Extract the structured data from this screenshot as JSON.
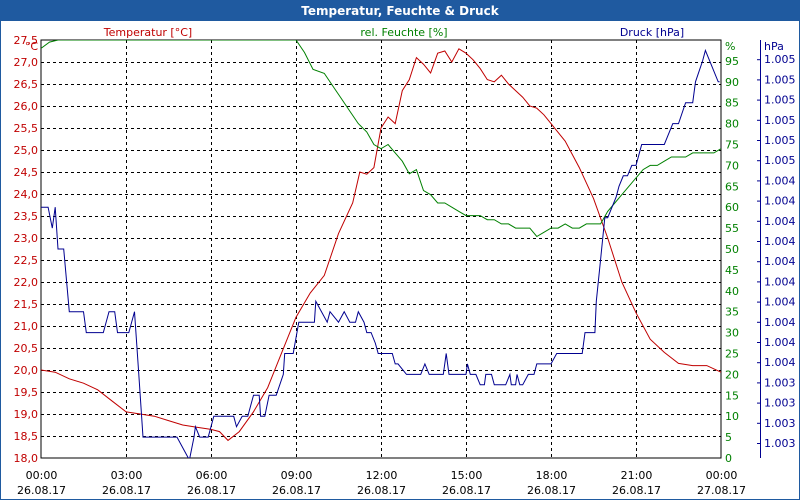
{
  "window": {
    "title": "Temperatur, Feuchte & Druck"
  },
  "chart_data": {
    "type": "line",
    "title": "Temperatur, Feuchte & Druck",
    "x_ticks": [
      {
        "time": "00:00",
        "date": "26.08.17"
      },
      {
        "time": "03:00",
        "date": "26.08.17"
      },
      {
        "time": "06:00",
        "date": "26.08.17"
      },
      {
        "time": "09:00",
        "date": "26.08.17"
      },
      {
        "time": "12:00",
        "date": "26.08.17"
      },
      {
        "time": "15:00",
        "date": "26.08.17"
      },
      {
        "time": "18:00",
        "date": "26.08.17"
      },
      {
        "time": "21:00",
        "date": "26.08.17"
      },
      {
        "time": "00:00",
        "date": "27.08.17"
      }
    ],
    "xlim": [
      0,
      24
    ],
    "axes": {
      "temperature": {
        "label": "Temperatur [°C]",
        "unit": "°C",
        "color": "#c00000",
        "ylim": [
          18.0,
          27.5
        ],
        "ticks": [
          "18,0",
          "18,5",
          "19,0",
          "19,5",
          "20,0",
          "20,5",
          "21,0",
          "21,5",
          "22,0",
          "22,5",
          "23,0",
          "23,5",
          "24,0",
          "24,5",
          "25,0",
          "25,5",
          "26,0",
          "26,5",
          "27,0",
          "27,5"
        ]
      },
      "humidity": {
        "label": "rel. Feuchte [%]",
        "unit": "%",
        "color": "#008000",
        "ylim": [
          0,
          100
        ],
        "ticks": [
          "0",
          "5",
          "10",
          "15",
          "20",
          "25",
          "30",
          "35",
          "40",
          "45",
          "50",
          "55",
          "60",
          "65",
          "70",
          "75",
          "80",
          "85",
          "90",
          "95"
        ]
      },
      "pressure": {
        "label": "Druck [hPa]",
        "unit": "hPa",
        "color": "#000090",
        "ylim": [
          1003.0,
          1005.0
        ],
        "ticks": [
          "1.003",
          "1.003",
          "1.003",
          "1.003",
          "1.004",
          "1.004",
          "1.004",
          "1.004",
          "1.004",
          "1.004",
          "1.004",
          "1.004",
          "1.004",
          "1.004",
          "1.005",
          "1.005",
          "1.005",
          "1.005",
          "1.005",
          "1.005"
        ]
      }
    },
    "series": [
      {
        "name": "Temperatur",
        "axis": "temperature",
        "color": "#c00000",
        "x": [
          0,
          0.5,
          1,
          1.5,
          2,
          2.5,
          3,
          3.5,
          4,
          4.5,
          5,
          5.5,
          6,
          6.3,
          6.6,
          7,
          7.5,
          8,
          8.5,
          9,
          9.5,
          10,
          10.5,
          11,
          11.25,
          11.5,
          11.75,
          12,
          12.25,
          12.5,
          12.75,
          13,
          13.25,
          13.5,
          13.75,
          14,
          14.25,
          14.5,
          14.75,
          15,
          15.25,
          15.5,
          15.75,
          16,
          16.25,
          16.5,
          16.75,
          17,
          17.25,
          17.5,
          17.75,
          18,
          18.5,
          19,
          19.5,
          20,
          20.5,
          21,
          21.5,
          22,
          22.5,
          23,
          23.5,
          24
        ],
        "values": [
          20.0,
          19.95,
          19.8,
          19.7,
          19.55,
          19.3,
          19.05,
          19.0,
          18.95,
          18.85,
          18.75,
          18.7,
          18.65,
          18.6,
          18.4,
          18.6,
          19.05,
          19.6,
          20.4,
          21.2,
          21.75,
          22.15,
          23.1,
          23.8,
          24.5,
          24.45,
          24.6,
          25.5,
          25.75,
          25.6,
          26.35,
          26.6,
          27.1,
          26.95,
          26.75,
          27.2,
          27.25,
          27.0,
          27.3,
          27.2,
          27.05,
          26.85,
          26.6,
          26.55,
          26.7,
          26.5,
          26.35,
          26.2,
          26.0,
          25.95,
          25.8,
          25.6,
          25.2,
          24.6,
          23.9,
          23.0,
          22.0,
          21.3,
          20.7,
          20.4,
          20.15,
          20.1,
          20.1,
          19.95
        ]
      },
      {
        "name": "rel. Feuchte",
        "axis": "humidity",
        "color": "#008000",
        "x": [
          0,
          0.3,
          0.6,
          0.8,
          9.0,
          9.3,
          9.6,
          10.0,
          10.3,
          10.6,
          10.9,
          11.2,
          11.5,
          11.75,
          12.0,
          12.25,
          12.5,
          12.75,
          13.0,
          13.25,
          13.5,
          13.75,
          14.0,
          14.25,
          14.5,
          14.75,
          15.0,
          15.25,
          15.5,
          15.75,
          16.0,
          16.25,
          16.5,
          16.75,
          17.0,
          17.25,
          17.5,
          17.75,
          18.0,
          18.25,
          18.5,
          18.75,
          19.0,
          19.25,
          19.5,
          19.75,
          20.0,
          20.25,
          20.5,
          20.75,
          21.0,
          21.25,
          21.5,
          21.75,
          22.0,
          22.25,
          22.5,
          22.75,
          23.0,
          23.25,
          23.5,
          23.75,
          24.0
        ],
        "values": [
          98,
          99.5,
          100,
          100,
          100,
          97,
          93,
          92,
          89,
          86,
          83,
          80,
          78,
          75,
          74,
          75,
          73,
          71,
          68,
          69,
          64,
          63,
          61,
          61,
          60,
          59,
          58,
          58,
          58,
          57,
          57,
          56,
          56,
          55,
          55,
          55,
          53,
          54,
          55,
          55,
          56,
          55,
          55,
          56,
          56,
          56,
          59,
          61,
          63,
          65,
          67,
          69,
          70,
          70,
          71,
          72,
          72,
          72,
          73,
          73,
          73,
          73,
          74
        ]
      },
      {
        "name": "Druck",
        "axis": "pressure",
        "color": "#000090",
        "x": [
          0,
          0.25,
          0.4,
          0.5,
          0.6,
          0.8,
          1.0,
          1.1,
          1.3,
          1.5,
          1.6,
          2.2,
          2.4,
          2.6,
          2.7,
          2.8,
          3.1,
          3.3,
          3.45,
          3.5,
          3.6,
          3.65,
          3.9,
          4.5,
          4.8,
          5.2,
          5.25,
          5.4,
          5.45,
          5.6,
          5.7,
          5.9,
          6.1,
          6.2,
          6.3,
          6.6,
          6.8,
          6.9,
          7.1,
          7.15,
          7.3,
          7.5,
          7.7,
          7.75,
          7.9,
          8.05,
          8.3,
          8.55,
          8.6,
          8.7,
          8.9,
          9.1,
          9.4,
          9.65,
          9.7,
          9.9,
          10.1,
          10.2,
          10.5,
          10.7,
          10.9,
          11.1,
          11.2,
          11.4,
          11.5,
          11.65,
          11.8,
          11.9,
          12.0,
          12.1,
          12.3,
          12.4,
          12.5,
          12.6,
          12.9,
          12.95,
          13.1,
          13.35,
          13.4,
          13.55,
          13.7,
          13.85,
          14.0,
          14.2,
          14.3,
          14.4,
          14.6,
          14.9,
          15.0,
          15.05,
          15.15,
          15.3,
          15.35,
          15.5,
          15.65,
          15.7,
          15.9,
          16.0,
          16.3,
          16.4,
          16.55,
          16.6,
          16.75,
          16.8,
          16.9,
          17.0,
          17.2,
          17.4,
          17.5,
          17.6,
          17.8,
          18.0,
          18.2,
          18.5,
          18.8,
          19.1,
          19.2,
          19.4,
          19.55,
          19.6,
          19.75,
          19.9,
          20.0,
          20.3,
          20.4,
          20.55,
          20.7,
          20.85,
          21.0,
          21.2,
          21.5,
          21.7,
          21.8,
          22.0,
          22.3,
          22.5,
          22.75,
          23.0,
          23.1,
          23.35,
          23.45,
          23.6,
          23.9,
          23.95
        ],
        "values": [
          1004.2,
          1004.2,
          1004.1,
          1004.2,
          1004.0,
          1004.0,
          1003.7,
          1003.7,
          1003.7,
          1003.7,
          1003.6,
          1003.6,
          1003.7,
          1003.7,
          1003.6,
          1003.6,
          1003.6,
          1003.7,
          1003.4,
          1003.3,
          1003.1,
          1003.1,
          1003.1,
          1003.1,
          1003.1,
          1003.0,
          1003.0,
          1003.1,
          1003.15,
          1003.1,
          1003.1,
          1003.1,
          1003.2,
          1003.2,
          1003.2,
          1003.2,
          1003.2,
          1003.15,
          1003.2,
          1003.2,
          1003.2,
          1003.3,
          1003.3,
          1003.2,
          1003.2,
          1003.3,
          1003.3,
          1003.4,
          1003.5,
          1003.5,
          1003.5,
          1003.65,
          1003.65,
          1003.65,
          1003.75,
          1003.7,
          1003.65,
          1003.7,
          1003.65,
          1003.7,
          1003.65,
          1003.65,
          1003.7,
          1003.65,
          1003.6,
          1003.6,
          1003.55,
          1003.5,
          1003.5,
          1003.5,
          1003.5,
          1003.5,
          1003.45,
          1003.45,
          1003.4,
          1003.4,
          1003.4,
          1003.4,
          1003.4,
          1003.45,
          1003.4,
          1003.4,
          1003.4,
          1003.4,
          1003.5,
          1003.4,
          1003.4,
          1003.4,
          1003.4,
          1003.45,
          1003.4,
          1003.4,
          1003.4,
          1003.35,
          1003.35,
          1003.4,
          1003.4,
          1003.35,
          1003.35,
          1003.35,
          1003.4,
          1003.35,
          1003.35,
          1003.4,
          1003.35,
          1003.35,
          1003.4,
          1003.4,
          1003.45,
          1003.45,
          1003.45,
          1003.45,
          1003.5,
          1003.5,
          1003.5,
          1003.5,
          1003.6,
          1003.6,
          1003.6,
          1003.75,
          1003.95,
          1004.15,
          1004.15,
          1004.25,
          1004.3,
          1004.35,
          1004.35,
          1004.4,
          1004.4,
          1004.5,
          1004.5,
          1004.5,
          1004.5,
          1004.5,
          1004.6,
          1004.6,
          1004.7,
          1004.7,
          1004.8,
          1004.9,
          1004.95,
          1004.9,
          1004.8,
          1004.8
        ]
      }
    ]
  }
}
